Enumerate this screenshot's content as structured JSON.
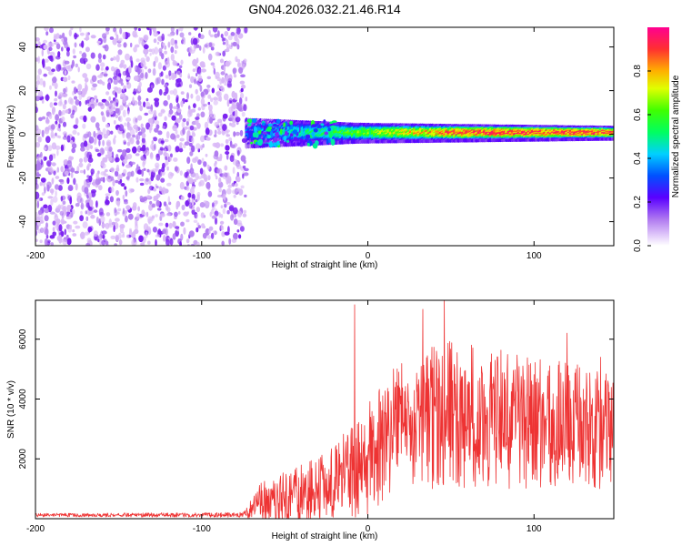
{
  "title": "GN04.2026.032.21.46.R14",
  "colors": {
    "axis": "#000000",
    "noise_light": "#d9b8f7",
    "noise_mid": "#b07af0",
    "noise_dark": "#7a1ff0",
    "snr_line": "#ee3333"
  },
  "chart_data": [
    {
      "type": "heatmap",
      "title": "",
      "xlabel": "Height of straight line (km)",
      "ylabel": "Frequency (Hz)",
      "xlim": [
        -200,
        148
      ],
      "ylim": [
        -51,
        49
      ],
      "xticks": [
        -200,
        -100,
        0,
        100
      ],
      "yticks": [
        -40,
        -20,
        0,
        20,
        40
      ],
      "colorbar": {
        "label": "Normalized spectral amplitude",
        "range": [
          0.0,
          1.0
        ],
        "ticks": [
          0.0,
          0.2,
          0.4,
          0.6,
          0.8
        ],
        "tick_labels": [
          "0.0",
          "0.2",
          "0.4",
          "0.6",
          "0.8"
        ]
      },
      "noise_region_x": [
        -200,
        -73
      ],
      "signal_band": {
        "x_start": -73,
        "x_end": 148,
        "center_hz": 0.5,
        "half_width_hz": [
          6,
          4,
          2.8
        ],
        "peak_amplitude": 0.95
      }
    },
    {
      "type": "line",
      "title": "",
      "xlabel": "Height of straight line (km)",
      "ylabel": "SNR (10 * v/v)",
      "xlim": [
        -200,
        148
      ],
      "ylim": [
        0,
        7300
      ],
      "xticks": [
        -200,
        -100,
        0,
        100
      ],
      "yticks": [
        2000,
        4000,
        6000
      ],
      "series": [
        {
          "name": "SNR",
          "color": "#ee3333",
          "envelope": [
            {
              "x": -200,
              "base": 120,
              "amp": 60
            },
            {
              "x": -75,
              "base": 130,
              "amp": 80
            },
            {
              "x": -65,
              "base": 500,
              "amp": 700
            },
            {
              "x": -40,
              "base": 800,
              "amp": 1000
            },
            {
              "x": -20,
              "base": 1200,
              "amp": 1200
            },
            {
              "x": 0,
              "base": 2000,
              "amp": 2000
            },
            {
              "x": 20,
              "base": 3200,
              "amp": 2200
            },
            {
              "x": 50,
              "base": 3500,
              "amp": 2500
            },
            {
              "x": 100,
              "base": 3200,
              "amp": 2200
            },
            {
              "x": 148,
              "base": 3000,
              "amp": 2000
            }
          ],
          "spikes": [
            {
              "x": -8,
              "y": 7150
            },
            {
              "x": 46,
              "y": 7300
            },
            {
              "x": 33,
              "y": 7000
            },
            {
              "x": 140,
              "y": 5400
            },
            {
              "x": 120,
              "y": 6200
            }
          ]
        }
      ]
    }
  ]
}
